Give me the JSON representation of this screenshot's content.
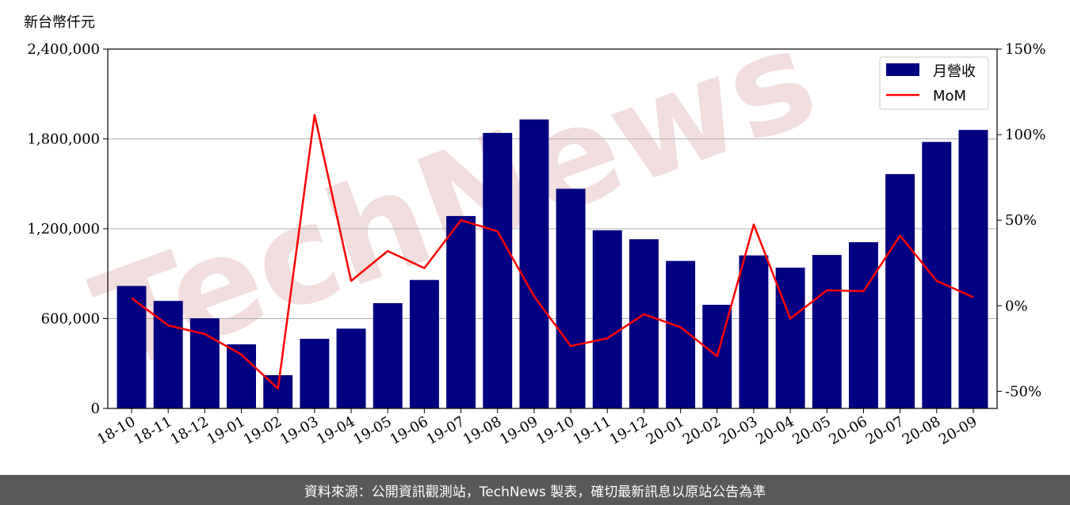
{
  "unit_label": "新台幣仟元",
  "footer_text": "資料來源：公開資訊觀測站，TechNews 製表，確切最新訊息以原站公告為準",
  "watermark_text": "TechNews",
  "colors": {
    "bar": "#000080",
    "line": "#ff0000",
    "grid": "#b0b0b0",
    "footer_bg": "#595959",
    "watermark": "#e9c4c4"
  },
  "chart_data": {
    "type": "bar",
    "categories": [
      "18-10",
      "18-11",
      "18-12",
      "19-01",
      "19-02",
      "19-03",
      "19-04",
      "19-05",
      "19-06",
      "19-07",
      "19-08",
      "19-09",
      "19-10",
      "19-11",
      "19-12",
      "20-01",
      "20-02",
      "20-03",
      "20-04",
      "20-05",
      "20-06",
      "20-07",
      "20-08",
      "20-09"
    ],
    "series": [
      {
        "name": "月營收",
        "type": "bar",
        "axis": "left",
        "values": [
          818000,
          718000,
          602000,
          428000,
          222000,
          465000,
          533000,
          703000,
          858000,
          1285000,
          1840000,
          1930000,
          1467000,
          1190000,
          1130000,
          985000,
          692000,
          1022000,
          940000,
          1025000,
          1110000,
          1565000,
          1780000,
          1860000
        ]
      },
      {
        "name": "MoM",
        "type": "line",
        "axis": "right",
        "values": [
          4.5,
          -11.5,
          -16.5,
          -28.5,
          -48.5,
          111.5,
          14.5,
          32.0,
          22.0,
          50.0,
          43.5,
          5.5,
          -23.5,
          -19.0,
          -5.0,
          -12.5,
          -29.5,
          47.5,
          -7.5,
          9.0,
          8.5,
          41.0,
          14.5,
          5.0
        ]
      }
    ],
    "y_left": {
      "ylim": [
        0,
        2400000
      ],
      "ticks": [
        "0",
        "600,000",
        "1,200,000",
        "1,800,000",
        "2,400,000"
      ]
    },
    "y_right": {
      "ylim": [
        -60,
        150
      ],
      "ticks": [
        "-50%",
        "0%",
        "50%",
        "100%",
        "150%"
      ]
    },
    "grid": true,
    "legend_position": "top-right",
    "legend": [
      "月營收",
      "MoM"
    ]
  }
}
